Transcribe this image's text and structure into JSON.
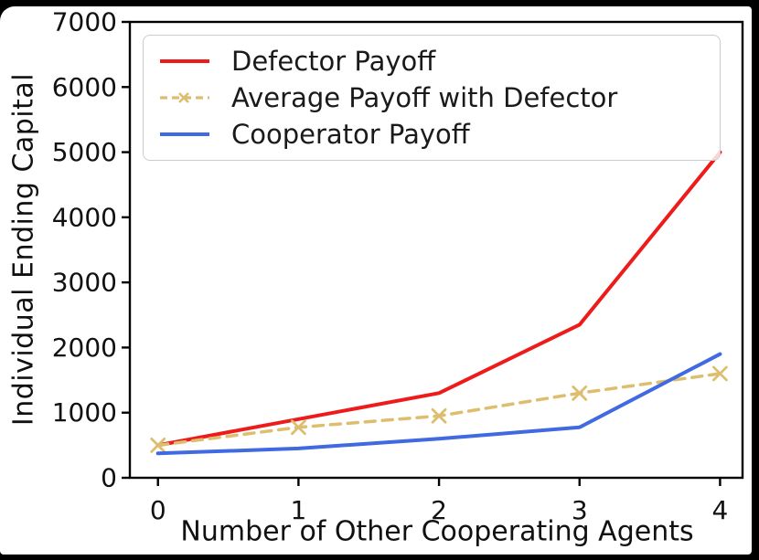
{
  "figure": {
    "frame_color": "#000000",
    "background_color": "#ffffff",
    "axis_color": "#000000",
    "tick_label_color": "#111111",
    "legend_border_color": "#cccccc"
  },
  "chart_data": {
    "type": "line",
    "title": "",
    "xlabel": "Number of Other Cooperating Agents",
    "ylabel": "Individual Ending Capital",
    "x": [
      0,
      1,
      2,
      3,
      4
    ],
    "xticks": [
      0,
      1,
      2,
      3,
      4
    ],
    "yticks": [
      0,
      1000,
      2000,
      3000,
      4000,
      5000,
      6000,
      7000
    ],
    "xlim": [
      -0.2,
      4.16
    ],
    "ylim": [
      0,
      7000
    ],
    "grid": false,
    "legend_position": "upper-left",
    "series": [
      {
        "name": "Defector Payoff",
        "color": "#ee1b1b",
        "style": "solid",
        "marker": "none",
        "values": [
          500,
          900,
          1300,
          2350,
          5000
        ]
      },
      {
        "name": "Average Payoff with Defector",
        "color": "#dcbe6e",
        "style": "dashed",
        "marker": "x",
        "values": [
          500,
          775,
          950,
          1300,
          1600
        ]
      },
      {
        "name": "Cooperator Payoff",
        "color": "#4169e1",
        "style": "solid",
        "marker": "none",
        "values": [
          375,
          450,
          600,
          775,
          1900
        ]
      }
    ]
  }
}
